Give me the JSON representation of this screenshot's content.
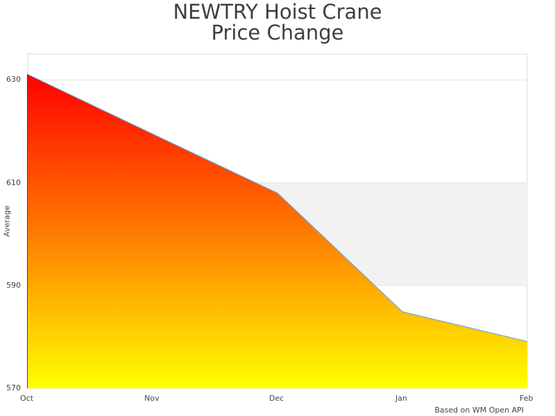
{
  "chart_data": {
    "type": "area",
    "title": "NEWTRY Hoist Crane Price Change",
    "title_lines": [
      "NEWTRY Hoist Crane",
      "Price Change"
    ],
    "xlabel": "",
    "ylabel": "Average",
    "categories": [
      "Oct",
      "Nov",
      "Dec",
      "Jan",
      "Feb"
    ],
    "series": [
      {
        "name": "Average",
        "values": [
          631.1,
          619.5,
          608.0,
          584.9,
          579.1
        ]
      }
    ],
    "ylim": [
      570,
      635
    ],
    "yticks": [
      570,
      590,
      610,
      630
    ],
    "grid": true,
    "fill": {
      "gradient_top": "#ff0000",
      "gradient_bottom": "#ffff00"
    },
    "line_color": "#6fa8dc",
    "band_color": "#f2f2f2",
    "credit": "Based on WM Open API"
  }
}
